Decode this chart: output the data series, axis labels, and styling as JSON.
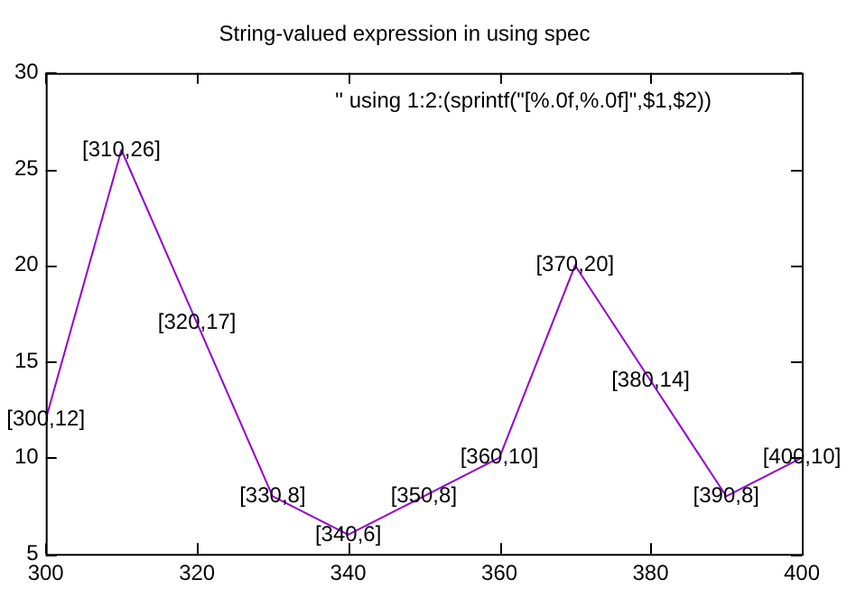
{
  "chart_data": {
    "type": "line",
    "title": "String-valued expression in using spec",
    "annotations": [
      "'' using 1:2:(sprintf(\"[%.0f,%.0f]\",$1,$2))",
      {
        "text": "[300,12]",
        "x": 300,
        "y": 12
      },
      {
        "text": "[310,26]",
        "x": 310,
        "y": 26
      },
      {
        "text": "[320,17]",
        "x": 320,
        "y": 17
      },
      {
        "text": "[330,8]",
        "x": 330,
        "y": 8
      },
      {
        "text": "[340,6]",
        "x": 340,
        "y": 6
      },
      {
        "text": "[350,8]",
        "x": 350,
        "y": 8
      },
      {
        "text": "[360,10]",
        "x": 360,
        "y": 10
      },
      {
        "text": "[370,20]",
        "x": 370,
        "y": 20
      },
      {
        "text": "[380,14]",
        "x": 380,
        "y": 14
      },
      {
        "text": "[390,8]",
        "x": 390,
        "y": 8
      },
      {
        "text": "[400,10]",
        "x": 400,
        "y": 10
      }
    ],
    "x": [
      300,
      310,
      320,
      330,
      340,
      350,
      360,
      370,
      380,
      390,
      400
    ],
    "series": [
      {
        "color": "#9400d3",
        "values": [
          12,
          26,
          17,
          8,
          6,
          8,
          10,
          20,
          14,
          8,
          10
        ]
      }
    ],
    "xlim": [
      300,
      400
    ],
    "xticks": [
      300,
      320,
      340,
      360,
      380,
      400
    ],
    "ylim": [
      5,
      30
    ],
    "yticks": [
      5,
      10,
      15,
      20,
      25,
      30
    ],
    "grid": false,
    "legend": false,
    "marker": "none",
    "line_style": "solid"
  }
}
